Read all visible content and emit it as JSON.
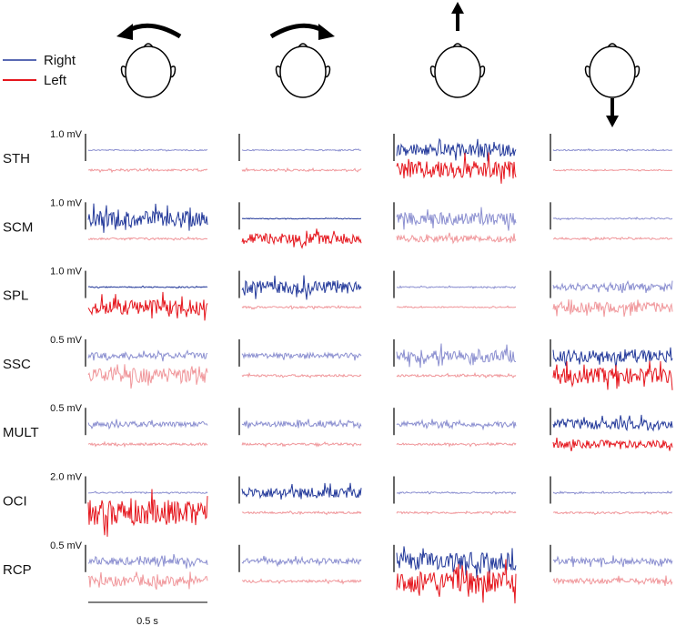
{
  "legend": {
    "right": {
      "label": "Right",
      "strong": "#23399a",
      "faint": "#8b8fd0"
    },
    "left": {
      "label": "Left",
      "strong": "#e5161d",
      "faint": "#f0979b"
    }
  },
  "time_scale": {
    "value": 0.5,
    "label": "0.5 s"
  },
  "rows": [
    {
      "muscle": "STH",
      "scale": 1.0,
      "scale_label": "1.0 mV",
      "cells": [
        {
          "right": 0.03,
          "left": 0.05,
          "right_strong": false,
          "left_strong": false
        },
        {
          "right": 0.03,
          "left": 0.05,
          "right_strong": false,
          "left_strong": false
        },
        {
          "right": 0.33,
          "left": 0.47,
          "right_strong": true,
          "left_strong": true
        },
        {
          "right": 0.03,
          "left": 0.03,
          "right_strong": false,
          "left_strong": false
        }
      ]
    },
    {
      "muscle": "SCM",
      "scale": 1.0,
      "scale_label": "1.0 mV",
      "cells": [
        {
          "right": 0.4,
          "left": 0.05,
          "right_strong": true,
          "left_strong": false
        },
        {
          "right": 0.02,
          "left": 0.27,
          "right_strong": true,
          "left_strong": true
        },
        {
          "right": 0.33,
          "left": 0.17,
          "right_strong": false,
          "left_strong": false
        },
        {
          "right": 0.03,
          "left": 0.05,
          "right_strong": false,
          "left_strong": false
        }
      ]
    },
    {
      "muscle": "SPL",
      "scale": 1.0,
      "scale_label": "1.0 mV",
      "cells": [
        {
          "right": 0.03,
          "left": 0.4,
          "right_strong": true,
          "left_strong": true
        },
        {
          "right": 0.33,
          "left": 0.05,
          "right_strong": true,
          "left_strong": false
        },
        {
          "right": 0.03,
          "left": 0.03,
          "right_strong": false,
          "left_strong": false
        },
        {
          "right": 0.17,
          "left": 0.27,
          "right_strong": false,
          "left_strong": false
        }
      ]
    },
    {
      "muscle": "SSC",
      "scale": 0.5,
      "scale_label": "0.5 mV",
      "cells": [
        {
          "right": 0.08,
          "left": 0.2,
          "right_strong": false,
          "left_strong": false
        },
        {
          "right": 0.07,
          "left": 0.03,
          "right_strong": false,
          "left_strong": false
        },
        {
          "right": 0.17,
          "left": 0.03,
          "right_strong": false,
          "left_strong": false
        },
        {
          "right": 0.17,
          "left": 0.2,
          "right_strong": true,
          "left_strong": true
        }
      ]
    },
    {
      "muscle": "MULT",
      "scale": 0.5,
      "scale_label": "0.5 mV",
      "cells": [
        {
          "right": 0.07,
          "left": 0.03,
          "right_strong": false,
          "left_strong": false
        },
        {
          "right": 0.07,
          "left": 0.03,
          "right_strong": false,
          "left_strong": false
        },
        {
          "right": 0.07,
          "left": 0.03,
          "right_strong": false,
          "left_strong": false
        },
        {
          "right": 0.13,
          "left": 0.1,
          "right_strong": true,
          "left_strong": true
        }
      ]
    },
    {
      "muscle": "OCI",
      "scale": 2.0,
      "scale_label": "2.0 mV",
      "cells": [
        {
          "right": 0.07,
          "left": 1.33,
          "right_strong": false,
          "left_strong": true
        },
        {
          "right": 0.53,
          "left": 0.1,
          "right_strong": true,
          "left_strong": false
        },
        {
          "right": 0.07,
          "left": 0.1,
          "right_strong": false,
          "left_strong": false
        },
        {
          "right": 0.07,
          "left": 0.1,
          "right_strong": false,
          "left_strong": false
        }
      ]
    },
    {
      "muscle": "RCP",
      "scale": 0.5,
      "scale_label": "0.5 mV",
      "cells": [
        {
          "right": 0.1,
          "left": 0.13,
          "right_strong": false,
          "left_strong": false
        },
        {
          "right": 0.07,
          "left": 0.03,
          "right_strong": false,
          "left_strong": false
        },
        {
          "right": 0.23,
          "left": 0.3,
          "right_strong": true,
          "left_strong": true
        },
        {
          "right": 0.08,
          "left": 0.08,
          "right_strong": false,
          "left_strong": false
        }
      ]
    }
  ]
}
